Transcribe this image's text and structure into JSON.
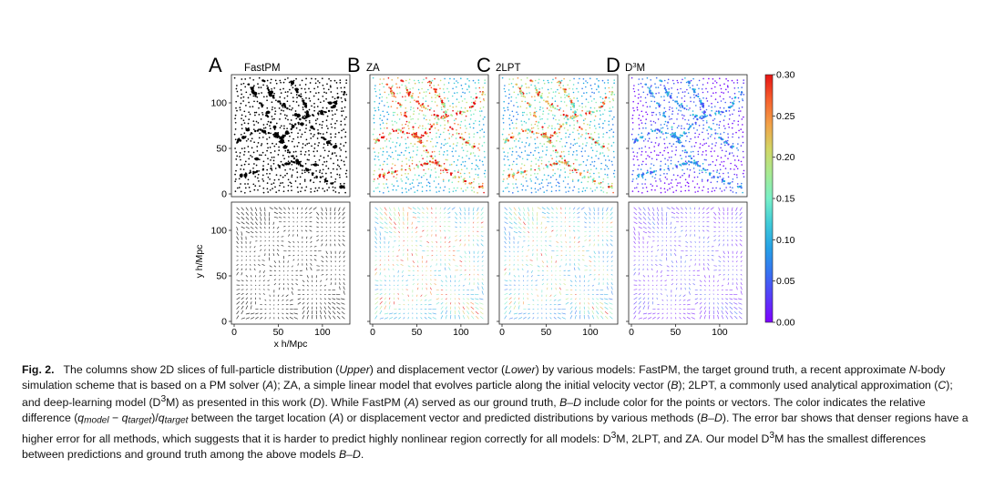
{
  "figure": {
    "panels": [
      {
        "letter": "A",
        "method": "FastPM",
        "mode": "truth"
      },
      {
        "letter": "B",
        "method": "ZA",
        "mode": "za"
      },
      {
        "letter": "C",
        "method": "2LPT",
        "mode": "lpt"
      },
      {
        "letter": "D",
        "method": "D³M",
        "mode": "d3m"
      }
    ],
    "axes": {
      "ylabel": "y h/Mpc",
      "xlabel": "x h/Mpc",
      "yticks": [
        0,
        50,
        100
      ],
      "xticks": [
        0,
        50,
        100
      ]
    },
    "colorbar": {
      "ticks": [
        "0.00",
        "0.05",
        "0.10",
        "0.15",
        "0.20",
        "0.25",
        "0.30"
      ],
      "min": 0,
      "max": 0.3,
      "colormap": "rainbow"
    }
  },
  "caption": {
    "label": "Fig. 2.",
    "text": "The columns show 2D slices of full-particle distribution (Upper) and displacement vector (Lower) by various models: FastPM, the target ground truth, a recent approximate N-body simulation scheme that is based on a PM solver (A); ZA, a simple linear model that evolves particle along the initial velocity vector (B); 2LPT, a commonly used analytical approximation (C); and deep-learning model (D³M) as presented in this work (D). While FastPM (A) served as our ground truth, B–D include color for the points or vectors. The color indicates the relative difference (q_model − q_target)/q_target between the target location (A) or displacement vector and predicted distributions by various methods (B–D). The error bar shows that denser regions have a higher error for all methods, which suggests that it is harder to predict highly nonlinear region correctly for all models: D³M, 2LPT, and ZA. Our model D³M has the smallest differences between predictions and ground truth among the above models B–D."
  }
}
